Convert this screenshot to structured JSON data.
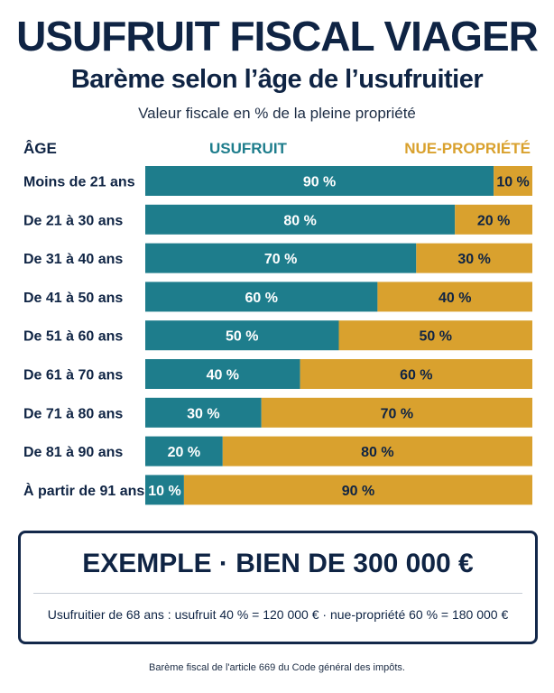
{
  "title": "USUFRUIT FISCAL VIAGER",
  "subtitle": "Barème selon l’âge de l’usufruitier",
  "caption": "Valeur fiscale en % de la pleine propriété",
  "headers": {
    "age": "ÂGE",
    "usufruit": "USUFRUIT",
    "nue_propriete": "NUE-PROPRIÉTÉ"
  },
  "colors": {
    "usufruit": "#1e7d8c",
    "nue_propriete": "#d9a12e",
    "text_dark": "#0f2444"
  },
  "chart_data": {
    "type": "bar",
    "orientation": "horizontal",
    "stacked": true,
    "categories": [
      "Moins de 21 ans",
      "De 21 à 30 ans",
      "De 31 à 40 ans",
      "De 41 à 50 ans",
      "De 51 à 60 ans",
      "De 61 à 70 ans",
      "De 71 à 80 ans",
      "De 81 à 90 ans",
      "À partir de 91 ans"
    ],
    "series": [
      {
        "name": "USUFRUIT",
        "values": [
          90,
          80,
          70,
          60,
          50,
          40,
          30,
          20,
          10
        ],
        "labels": [
          "90 %",
          "80 %",
          "70 %",
          "60 %",
          "50 %",
          "40 %",
          "30 %",
          "20 %",
          "10 %"
        ]
      },
      {
        "name": "NUE-PROPRIÉTÉ",
        "values": [
          10,
          20,
          30,
          40,
          50,
          60,
          70,
          80,
          90
        ],
        "labels": [
          "10 %",
          "20 %",
          "30 %",
          "40 %",
          "50 %",
          "60 %",
          "70 %",
          "80 %",
          "90 %"
        ]
      }
    ],
    "xlim": [
      0,
      100
    ],
    "grid": false,
    "legend": "top"
  },
  "example": {
    "title": "EXEMPLE · BIEN DE 300 000 €",
    "text": "Usufruitier de 68 ans : usufruit 40 % = 120 000 € · nue-propriété 60 % = 180 000 €"
  },
  "footnote": "Barème fiscal de l'article 669 du Code général des impôts."
}
